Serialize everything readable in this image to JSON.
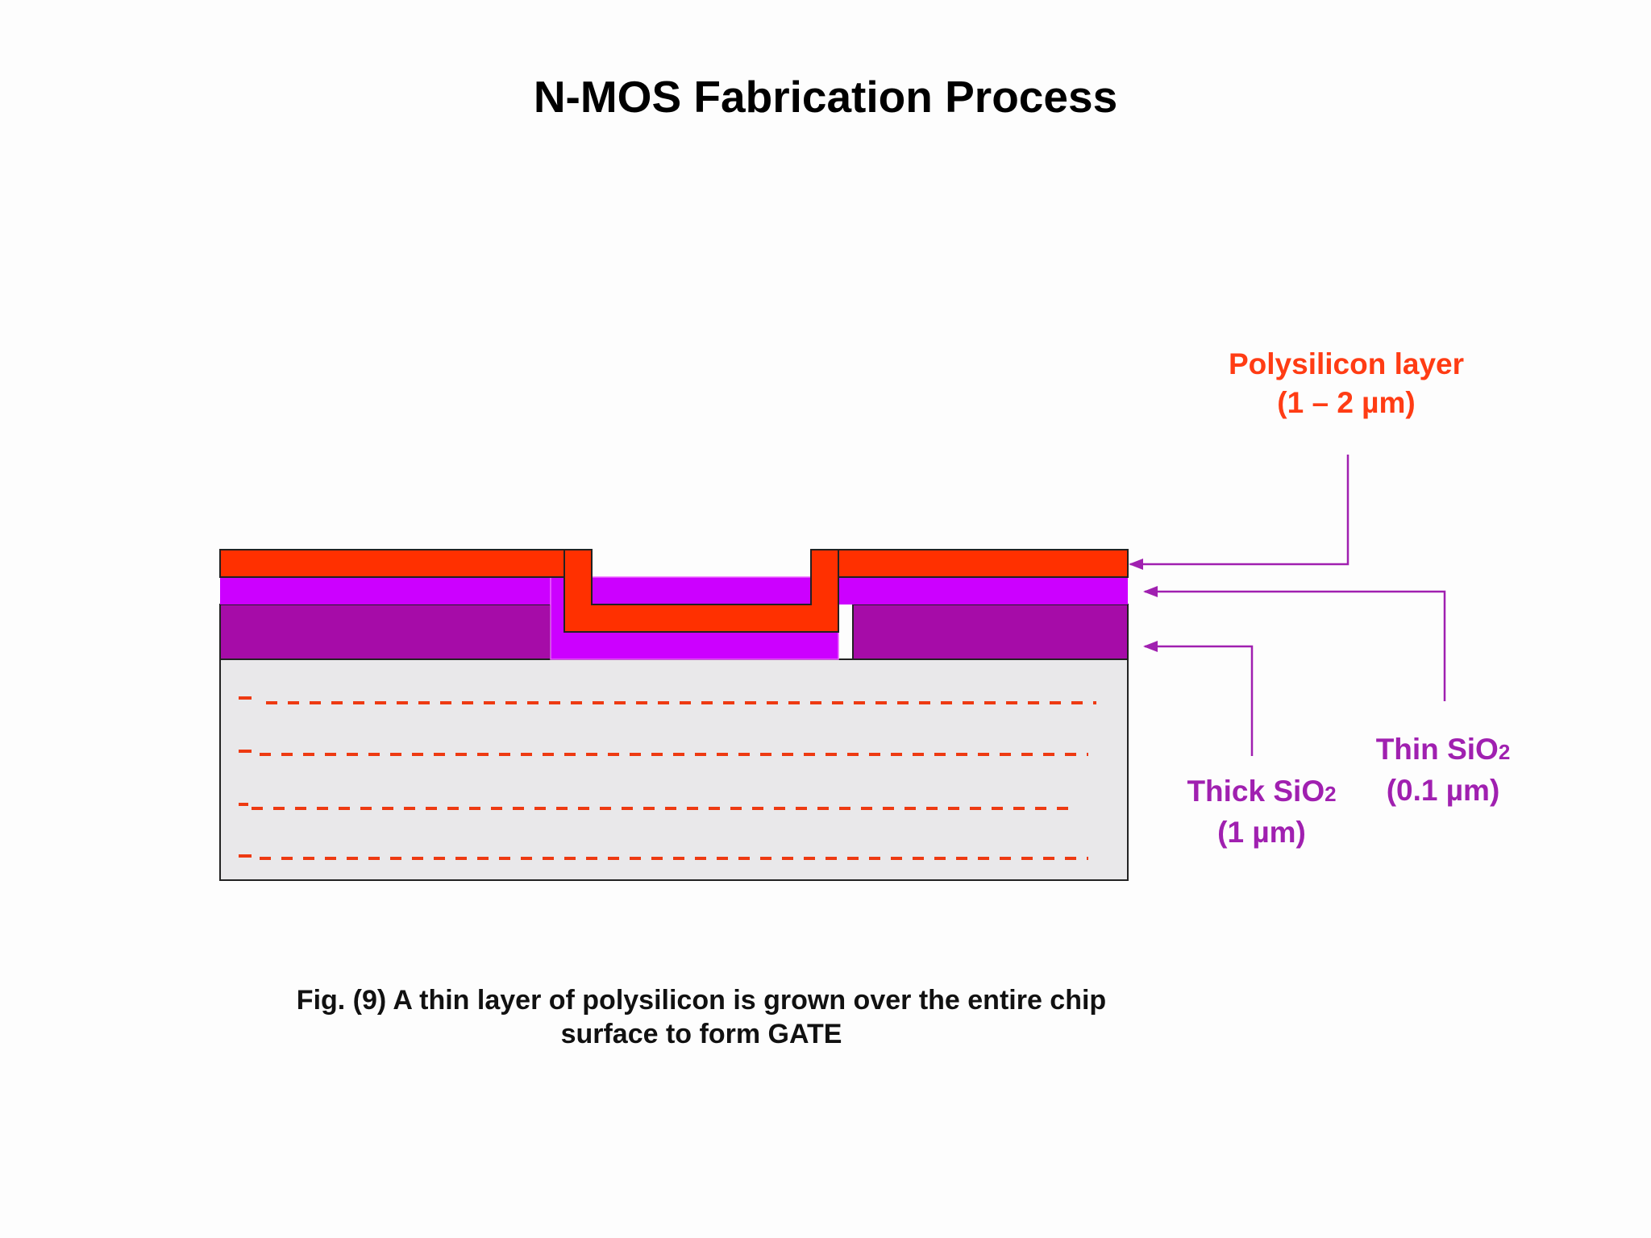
{
  "title": "N-MOS Fabrication Process",
  "labels": {
    "poly_line1": "Polysilicon layer",
    "poly_line2": "(1 – 2 µm)",
    "thin_main": "Thin SiO",
    "thin_sub": "2",
    "thin_line2": "(0.1 µm)",
    "thick_main": "Thick SiO",
    "thick_sub": "2",
    "thick_line2": "(1 µm)"
  },
  "caption": {
    "line1": "Fig. (9) A thin layer of polysilicon is grown over the entire chip",
    "line2": "surface to form GATE"
  },
  "colors": {
    "polysilicon": "#ff3000",
    "thin_oxide": "#cc00ff",
    "thick_oxide": "#a60ca8",
    "substrate": "#e9e8ea",
    "dopant": "#ee3a12",
    "leader_poly": "#a020b0",
    "leader_oxide": "#a020b0"
  }
}
